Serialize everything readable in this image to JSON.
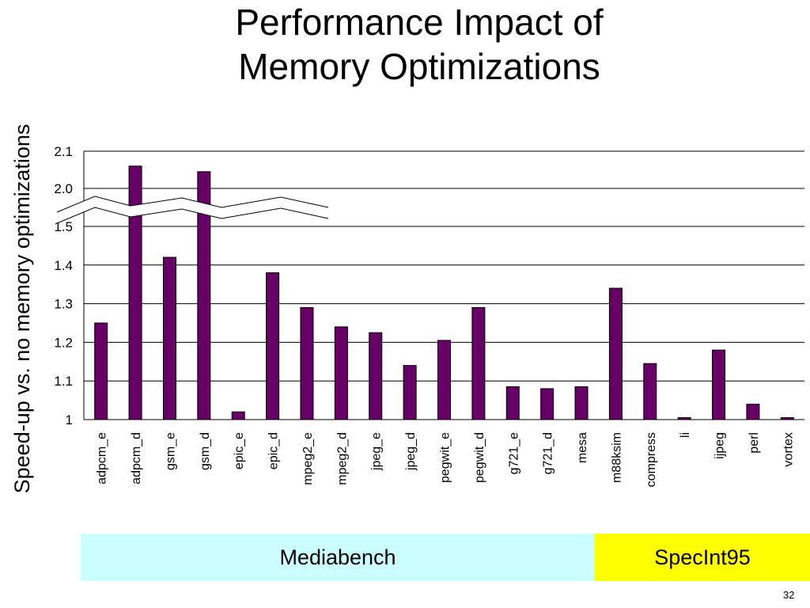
{
  "title_lines": [
    "Performance Impact of",
    "Memory Optimizations"
  ],
  "page_number": "32",
  "groups": [
    {
      "label": "Mediabench",
      "color": "#ccffff"
    },
    {
      "label": "SpecInt95",
      "color": "#ffff00"
    }
  ],
  "colors": {
    "bar": "#660066",
    "bar_stroke": "#000000",
    "grid": "#000000"
  },
  "chart_data": {
    "type": "bar",
    "title": "",
    "ylabel": "Speed-up vs. no memory optimizations",
    "xlabel": "",
    "axis_break": {
      "from": 1.5,
      "to": 2.0
    },
    "ylim": [
      1,
      2.1
    ],
    "yticks": [
      1,
      1.1,
      1.2,
      1.3,
      1.4,
      1.5,
      2.0,
      2.1
    ],
    "ytick_labels": [
      "1",
      "1.1",
      "1.2",
      "1.3",
      "1.4",
      "1.5",
      "2.0",
      "2.1"
    ],
    "grid": true,
    "categories": [
      "adpcm_e",
      "adpcm_d",
      "gsm_e",
      "gsm_d",
      "epic_e",
      "epic_d",
      "mpeg2_e",
      "mpeg2_d",
      "jpeg_e",
      "jpeg_d",
      "pegwit_e",
      "pegwit_d",
      "g721_e",
      "g721_d",
      "mesa",
      "m88ksim",
      "compress",
      "li",
      "ijpeg",
      "perl",
      "vortex"
    ],
    "values": [
      1.25,
      2.06,
      1.42,
      2.045,
      1.02,
      1.38,
      1.29,
      1.24,
      1.225,
      1.14,
      1.205,
      1.29,
      1.085,
      1.08,
      1.085,
      1.34,
      1.145,
      1.005,
      1.18,
      1.04,
      1.005
    ]
  }
}
